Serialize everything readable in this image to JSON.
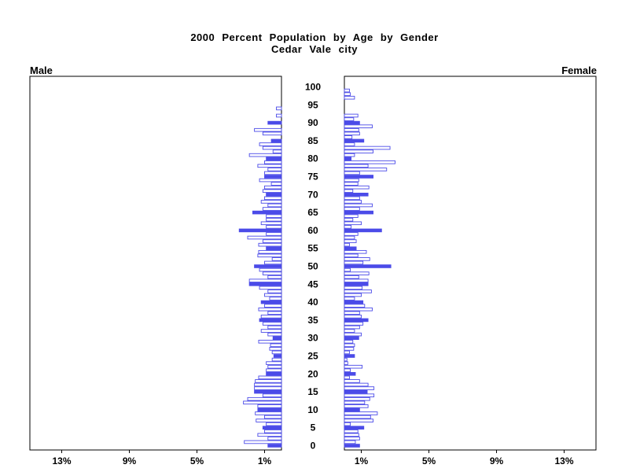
{
  "title_line1": "2000 Percent Population by Age by Gender",
  "title_line2": "Cedar Vale city",
  "left_panel_label": "Male",
  "right_panel_label": "Female",
  "colors": {
    "bar_blue": "#4b4be8",
    "bar_white_fill": "#ffffff",
    "axis_black": "#000000",
    "background": "#ffffff"
  },
  "chart_data": {
    "type": "bar",
    "subtype": "population-pyramid",
    "title": "2000 Percent Population by Age by Gender",
    "subtitle": "Cedar Vale city",
    "legend": "none",
    "x_axis": {
      "ticks_pct": [
        1,
        5,
        9,
        13
      ],
      "tick_suffix": "%",
      "max_pct": 14.9
    },
    "age_axis": {
      "min": 0,
      "max": 100,
      "label_step": 5
    },
    "highlight_multiple_of": 5,
    "series": [
      {
        "name": "Male",
        "side": "left",
        "values_pct_by_age": [
          0.8,
          2.2,
          0.8,
          1.4,
          1.0,
          1.1,
          0.9,
          1.5,
          1.0,
          1.55,
          1.4,
          1.4,
          2.25,
          2.0,
          1.1,
          1.6,
          1.6,
          1.6,
          1.55,
          1.35,
          0.9,
          0.9,
          0.8,
          0.9,
          0.55,
          0.45,
          0.55,
          0.7,
          0.65,
          1.35,
          0.5,
          0.8,
          1.2,
          0.8,
          1.1,
          1.3,
          1.2,
          0.8,
          1.35,
          1.0,
          1.2,
          0.7,
          1.0,
          0.8,
          1.3,
          1.9,
          1.9,
          0.8,
          1.1,
          1.3,
          1.6,
          1.0,
          0.55,
          1.4,
          1.35,
          0.9,
          1.35,
          1.1,
          2.0,
          0.9,
          2.5,
          0.9,
          1.2,
          0.9,
          0.9,
          1.7,
          1.1,
          0.8,
          1.2,
          1.0,
          0.9,
          1.1,
          1.0,
          0.6,
          1.3,
          1.0,
          1.0,
          0.8,
          1.4,
          1.0,
          0.9,
          1.9,
          0.5,
          1.1,
          1.3,
          0.6,
          0,
          1.1,
          1.6,
          0,
          0.8,
          0,
          0.3,
          0,
          0.3,
          0,
          0,
          0,
          0,
          0,
          0
        ]
      },
      {
        "name": "Female",
        "side": "right",
        "values_pct_by_age": [
          0.9,
          0.65,
          0.9,
          0.85,
          0.8,
          1.15,
          0.35,
          1.7,
          1.55,
          1.95,
          0.9,
          1.4,
          1.2,
          1.5,
          1.75,
          1.35,
          1.75,
          1.4,
          0.9,
          0.3,
          0.65,
          0.35,
          1.05,
          0.2,
          0.15,
          0.6,
          0.3,
          0.55,
          0.6,
          0.5,
          0.85,
          1.0,
          0.6,
          0.9,
          1.1,
          1.4,
          1.0,
          0.9,
          1.65,
          1.2,
          1.1,
          0.6,
          1.0,
          1.6,
          1.05,
          1.4,
          1.4,
          0.85,
          1.45,
          0.35,
          2.75,
          1.1,
          1.5,
          0.8,
          1.3,
          0.7,
          0.3,
          0.7,
          0.6,
          0.8,
          2.2,
          0.4,
          1.0,
          0.5,
          0.8,
          1.7,
          0.9,
          1.65,
          1.0,
          0.9,
          1.4,
          0.5,
          1.45,
          0.8,
          0.85,
          1.7,
          0.9,
          2.5,
          1.4,
          3.0,
          0.4,
          0.6,
          1.7,
          2.7,
          0.6,
          1.15,
          0.45,
          0.9,
          0.85,
          1.65,
          0.9,
          0.55,
          0.8,
          0,
          0,
          0,
          0,
          0.6,
          0.35,
          0.3,
          0
        ]
      }
    ]
  }
}
